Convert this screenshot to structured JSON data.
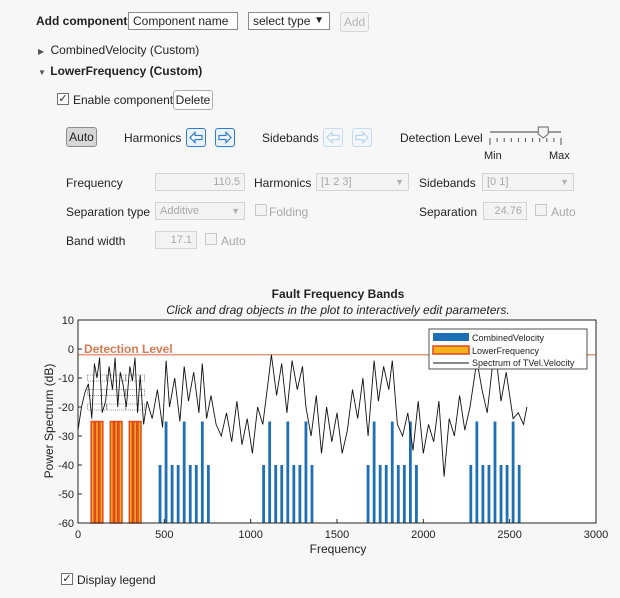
{
  "header": {
    "add_component_label": "Add component",
    "component_name_value": "Component name",
    "select_type_value": "select type",
    "add_button": "Add"
  },
  "tree": {
    "items": [
      {
        "label": "CombinedVelocity (Custom)",
        "expanded": false
      },
      {
        "label": "LowerFrequency (Custom)",
        "expanded": true
      }
    ]
  },
  "component": {
    "enable_label": "Enable component",
    "enable_checked": true,
    "delete_button": "Delete",
    "auto_button": "Auto",
    "harmonics_label": "Harmonics",
    "sidebands_label": "Sidebands",
    "detection_level_label": "Detection Level",
    "slider_min": "Min",
    "slider_max": "Max",
    "slider_level": 0.75,
    "frequency_label": "Frequency",
    "frequency_value": "110.5",
    "harmonics_field_label": "Harmonics",
    "harmonics_value": "[1 2 3]",
    "sidebands_field_label": "Sidebands",
    "sidebands_value": "[0 1]",
    "separation_type_label": "Separation type",
    "separation_type_value": "Additive",
    "folding_label": "Folding",
    "separation_label": "Separation",
    "separation_value": "24.76",
    "separation_auto_label": "Auto",
    "band_width_label": "Band width",
    "band_width_value": "17.1",
    "band_width_auto_label": "Auto"
  },
  "footer": {
    "display_legend_label": "Display legend",
    "display_legend_checked": true
  },
  "colors": {
    "combined": "#1f6fb4",
    "lower_fill": "#f2b21b",
    "lower_edge": "#e0471f",
    "detection": "#d77a52",
    "spectrum": "#111111"
  },
  "chart_data": {
    "type": "line",
    "title": "Fault Frequency Bands",
    "subtitle": "Click and drag objects in the plot to interactively edit parameters.",
    "xlabel": "Frequency",
    "ylabel": "Power Spectrum (dB)",
    "xlim": [
      0,
      3000
    ],
    "ylim": [
      -60,
      10
    ],
    "xticks": [
      "0",
      "500",
      "1000",
      "1500",
      "2000",
      "2500",
      "3000"
    ],
    "yticks": [
      "10",
      "0",
      "-10",
      "-20",
      "-30",
      "-40",
      "-50",
      "-60"
    ],
    "detection_level": {
      "label": "Detection Level",
      "value": -2
    },
    "legend": {
      "placement": "top-right",
      "entries": [
        "CombinedVelocity",
        "LowerFrequency",
        "Spectrum of TVel.Velocity"
      ]
    },
    "series": [
      {
        "name": "CombinedVelocity",
        "bars": [
          {
            "x": 475,
            "top": -40
          },
          {
            "x": 510,
            "top": -25
          },
          {
            "x": 545,
            "top": -40
          },
          {
            "x": 580,
            "top": -40
          },
          {
            "x": 615,
            "top": -25
          },
          {
            "x": 650,
            "top": -40
          },
          {
            "x": 685,
            "top": -40
          },
          {
            "x": 720,
            "top": -25
          },
          {
            "x": 755,
            "top": -40
          },
          {
            "x": 1075,
            "top": -40
          },
          {
            "x": 1110,
            "top": -25
          },
          {
            "x": 1145,
            "top": -40
          },
          {
            "x": 1180,
            "top": -40
          },
          {
            "x": 1215,
            "top": -25
          },
          {
            "x": 1250,
            "top": -40
          },
          {
            "x": 1285,
            "top": -40
          },
          {
            "x": 1320,
            "top": -25
          },
          {
            "x": 1355,
            "top": -40
          },
          {
            "x": 1680,
            "top": -40
          },
          {
            "x": 1715,
            "top": -25
          },
          {
            "x": 1750,
            "top": -40
          },
          {
            "x": 1785,
            "top": -40
          },
          {
            "x": 1820,
            "top": -25
          },
          {
            "x": 1855,
            "top": -40
          },
          {
            "x": 1890,
            "top": -40
          },
          {
            "x": 1925,
            "top": -25
          },
          {
            "x": 1960,
            "top": -40
          },
          {
            "x": 2275,
            "top": -40
          },
          {
            "x": 2310,
            "top": -25
          },
          {
            "x": 2345,
            "top": -40
          },
          {
            "x": 2380,
            "top": -40
          },
          {
            "x": 2415,
            "top": -25
          },
          {
            "x": 2450,
            "top": -40
          },
          {
            "x": 2485,
            "top": -40
          },
          {
            "x": 2520,
            "top": -25
          },
          {
            "x": 2555,
            "top": -40
          }
        ]
      },
      {
        "name": "LowerFrequency",
        "bars": [
          {
            "x": 85,
            "top": -25
          },
          {
            "x": 110,
            "top": -25
          },
          {
            "x": 135,
            "top": -25
          },
          {
            "x": 196,
            "top": -25
          },
          {
            "x": 221,
            "top": -25
          },
          {
            "x": 246,
            "top": -25
          },
          {
            "x": 306,
            "top": -25
          },
          {
            "x": 331,
            "top": -25
          },
          {
            "x": 356,
            "top": -25
          }
        ],
        "band_width": 17.1
      },
      {
        "name": "Spectrum of TVel.Velocity",
        "x": [
          0,
          20,
          40,
          60,
          80,
          95,
          110,
          125,
          140,
          160,
          180,
          200,
          215,
          230,
          245,
          260,
          280,
          300,
          315,
          330,
          345,
          360,
          380,
          400,
          430,
          460,
          490,
          510,
          530,
          560,
          590,
          615,
          640,
          670,
          700,
          720,
          745,
          770,
          800,
          830,
          860,
          890,
          920,
          950,
          980,
          1010,
          1040,
          1070,
          1100,
          1120,
          1150,
          1180,
          1210,
          1240,
          1270,
          1300,
          1320,
          1350,
          1380,
          1410,
          1440,
          1470,
          1500,
          1530,
          1560,
          1590,
          1620,
          1650,
          1680,
          1715,
          1740,
          1770,
          1800,
          1820,
          1850,
          1880,
          1910,
          1940,
          1970,
          2000,
          2030,
          2060,
          2090,
          2120,
          2150,
          2180,
          2210,
          2240,
          2270,
          2310,
          2340,
          2370,
          2400,
          2420,
          2450,
          2480,
          2520,
          2550,
          2580,
          2600
        ],
        "y": [
          -28,
          -20,
          -15,
          -12,
          -24,
          -5,
          -10,
          -3,
          -22,
          -18,
          -6,
          -14,
          -3,
          -20,
          -8,
          -12,
          -20,
          -6,
          -11,
          -3,
          -22,
          -9,
          -26,
          -18,
          -24,
          -14,
          -27,
          -4,
          -20,
          -10,
          -25,
          -6,
          -18,
          -8,
          -22,
          -5,
          -24,
          -16,
          -26,
          -30,
          -22,
          -32,
          -18,
          -33,
          -24,
          -36,
          -20,
          -26,
          -12,
          -2,
          -16,
          -5,
          -22,
          -4,
          -14,
          -6,
          -20,
          -30,
          -16,
          -36,
          -20,
          -32,
          -22,
          -36,
          -28,
          -14,
          -24,
          -10,
          -30,
          -4,
          -18,
          -6,
          -14,
          -4,
          -26,
          -30,
          -22,
          -35,
          -18,
          -36,
          -26,
          -32,
          -18,
          -44,
          -24,
          -30,
          -16,
          -28,
          -20,
          -4,
          -14,
          -22,
          -6,
          -2,
          -18,
          -8,
          -24,
          -22,
          -26,
          -20
        ]
      }
    ]
  }
}
